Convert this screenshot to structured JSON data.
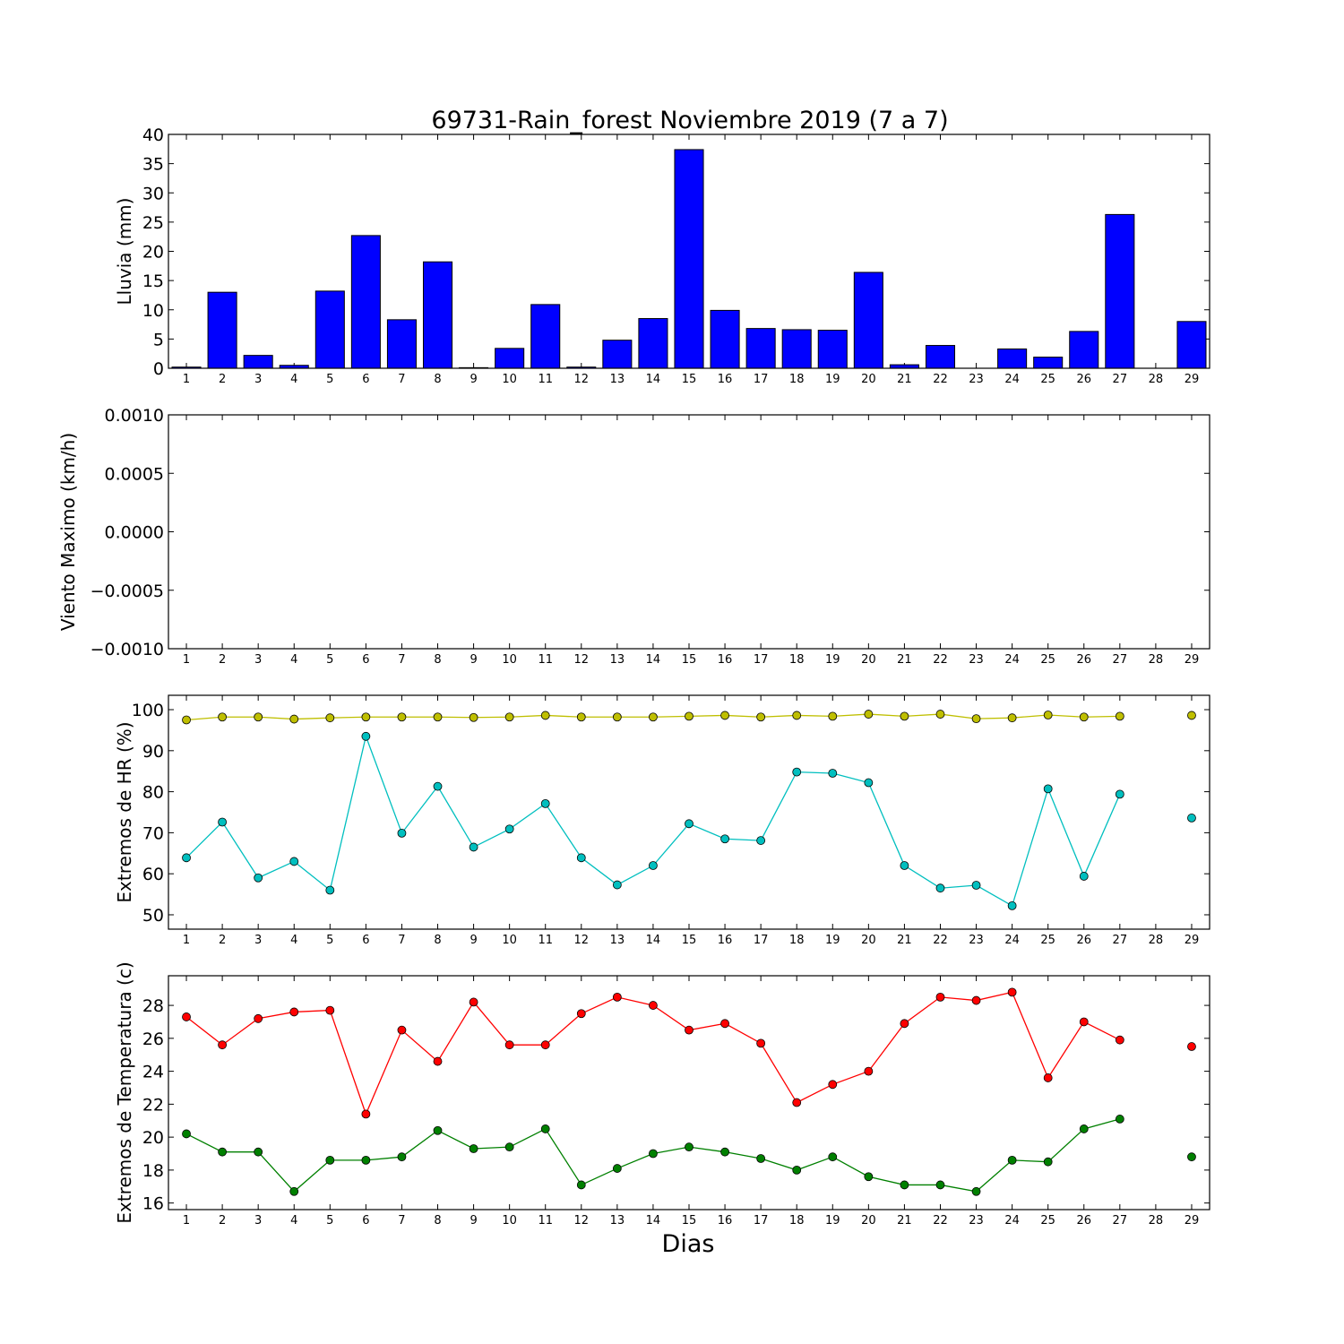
{
  "title": "69731-Rain_forest Noviembre 2019  (7 a 7)",
  "xlabel": "Dias",
  "days": [
    1,
    2,
    3,
    4,
    5,
    6,
    7,
    8,
    9,
    10,
    11,
    12,
    13,
    14,
    15,
    16,
    17,
    18,
    19,
    20,
    21,
    22,
    23,
    24,
    25,
    26,
    27,
    28,
    29
  ],
  "chart_data": [
    {
      "type": "bar",
      "ylabel": "Lluvia (mm)",
      "ylim": [
        0,
        40
      ],
      "yticks": [
        0,
        5,
        10,
        15,
        20,
        25,
        30,
        35,
        40
      ],
      "ytick_labels": [
        "0",
        "5",
        "10",
        "15",
        "20",
        "25",
        "30",
        "35",
        "40"
      ],
      "categories": [
        1,
        2,
        3,
        4,
        5,
        6,
        7,
        8,
        9,
        10,
        11,
        12,
        13,
        14,
        15,
        16,
        17,
        18,
        19,
        20,
        21,
        22,
        23,
        24,
        25,
        26,
        27,
        28,
        29
      ],
      "values": [
        0.2,
        13.0,
        2.2,
        0.5,
        13.2,
        22.7,
        8.3,
        18.2,
        0.1,
        3.4,
        10.9,
        0.2,
        4.8,
        8.5,
        37.4,
        9.9,
        6.8,
        6.6,
        6.5,
        16.4,
        0.6,
        3.9,
        0,
        3.3,
        1.9,
        6.3,
        26.3,
        0,
        8.0
      ],
      "color": "#0000ff"
    },
    {
      "type": "line",
      "ylabel": "Viento Maximo (km/h)",
      "ylim": [
        -0.001,
        0.001
      ],
      "yticks": [
        -0.001,
        -0.0005,
        0,
        0.0005,
        0.001
      ],
      "ytick_labels": [
        "−0.0010",
        "−0.0005",
        "0.0000",
        "0.0005",
        "0.0010"
      ],
      "series": []
    },
    {
      "type": "line",
      "ylabel": "Extremos de HR (%)",
      "ylim": [
        46.5,
        103.5
      ],
      "yticks": [
        50,
        60,
        70,
        80,
        90,
        100
      ],
      "ytick_labels": [
        "50",
        "60",
        "70",
        "80",
        "90",
        "100"
      ],
      "series": [
        {
          "color": "#bfbf00",
          "values": [
            97.5,
            98.2,
            98.2,
            97.7,
            98.0,
            98.2,
            98.2,
            98.2,
            98.1,
            98.2,
            98.6,
            98.2,
            98.2,
            98.2,
            98.4,
            98.6,
            98.2,
            98.6,
            98.4,
            98.9,
            98.4,
            98.9,
            97.8,
            98.0,
            98.7,
            98.2,
            98.4,
            null,
            98.6
          ]
        },
        {
          "color": "#00bfbf",
          "values": [
            63.9,
            72.6,
            59.0,
            63.0,
            56.0,
            93.5,
            69.9,
            81.3,
            66.5,
            70.9,
            77.1,
            63.9,
            57.3,
            62.0,
            72.2,
            68.5,
            68.1,
            84.8,
            84.5,
            82.2,
            62.0,
            56.5,
            57.2,
            52.2,
            80.7,
            59.4,
            79.4,
            null,
            73.6
          ]
        }
      ]
    },
    {
      "type": "line",
      "ylabel": "Extremos de Temperatura (c)",
      "ylim": [
        15.6,
        29.8
      ],
      "yticks": [
        16,
        18,
        20,
        22,
        24,
        26,
        28
      ],
      "ytick_labels": [
        "16",
        "18",
        "20",
        "22",
        "24",
        "26",
        "28"
      ],
      "series": [
        {
          "color": "#ff0000",
          "values": [
            27.3,
            25.6,
            27.2,
            27.6,
            27.7,
            21.4,
            26.5,
            24.6,
            28.2,
            25.6,
            25.6,
            27.5,
            28.5,
            28.0,
            26.5,
            26.9,
            25.7,
            22.1,
            23.2,
            24.0,
            26.9,
            28.5,
            28.3,
            28.8,
            23.6,
            27.0,
            25.9,
            null,
            25.5
          ]
        },
        {
          "color": "#008000",
          "values": [
            20.2,
            19.1,
            19.1,
            16.7,
            18.6,
            18.6,
            18.8,
            20.4,
            19.3,
            19.4,
            20.5,
            17.1,
            18.1,
            19.0,
            19.4,
            19.1,
            18.7,
            18.0,
            18.8,
            17.6,
            17.1,
            17.1,
            16.7,
            18.6,
            18.5,
            20.5,
            21.1,
            null,
            18.8
          ]
        }
      ]
    }
  ]
}
